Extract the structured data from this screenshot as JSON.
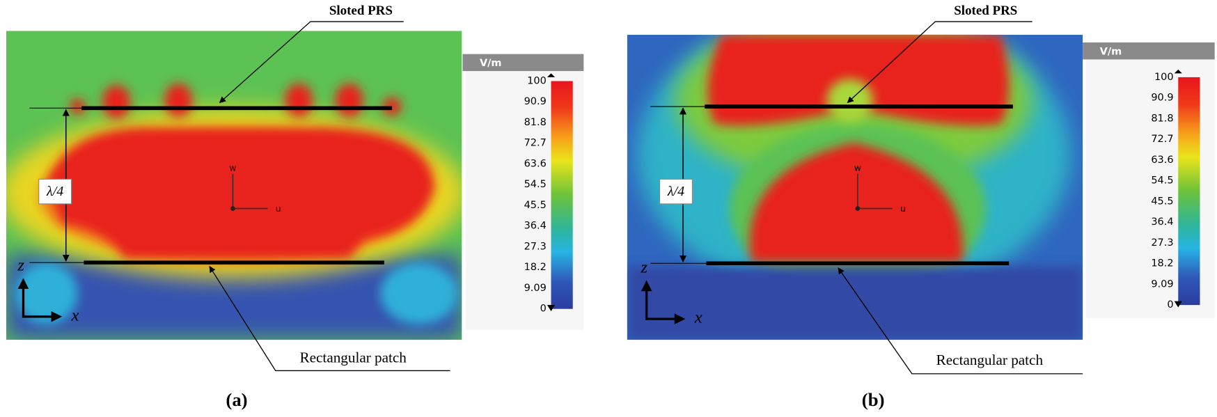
{
  "panels": [
    {
      "label": "(a)",
      "prs_label": "Sloted PRS",
      "patch_label": "Rectangular patch",
      "distance_label": "λ/4",
      "axis_labels": [
        "z",
        "x"
      ],
      "origin_labels": [
        "w",
        "u"
      ],
      "colorbar": {
        "unit": "V/m",
        "ticks": [
          "100",
          "90.9",
          "81.8",
          "72.7",
          "63.6",
          "54.5",
          "45.5",
          "36.4",
          "27.3",
          "18.2",
          "9.09",
          "0"
        ]
      }
    },
    {
      "label": "(b)",
      "prs_label": "Sloted PRS",
      "patch_label": "Rectangular patch",
      "distance_label": "λ/4",
      "axis_labels": [
        "z",
        "x"
      ],
      "origin_labels": [
        "w",
        "u"
      ],
      "colorbar": {
        "unit": "V/m",
        "ticks": [
          "100",
          "90.9",
          "81.8",
          "72.7",
          "63.6",
          "54.5",
          "45.5",
          "36.4",
          "27.3",
          "18.2",
          "9.09",
          "0"
        ]
      }
    }
  ]
}
